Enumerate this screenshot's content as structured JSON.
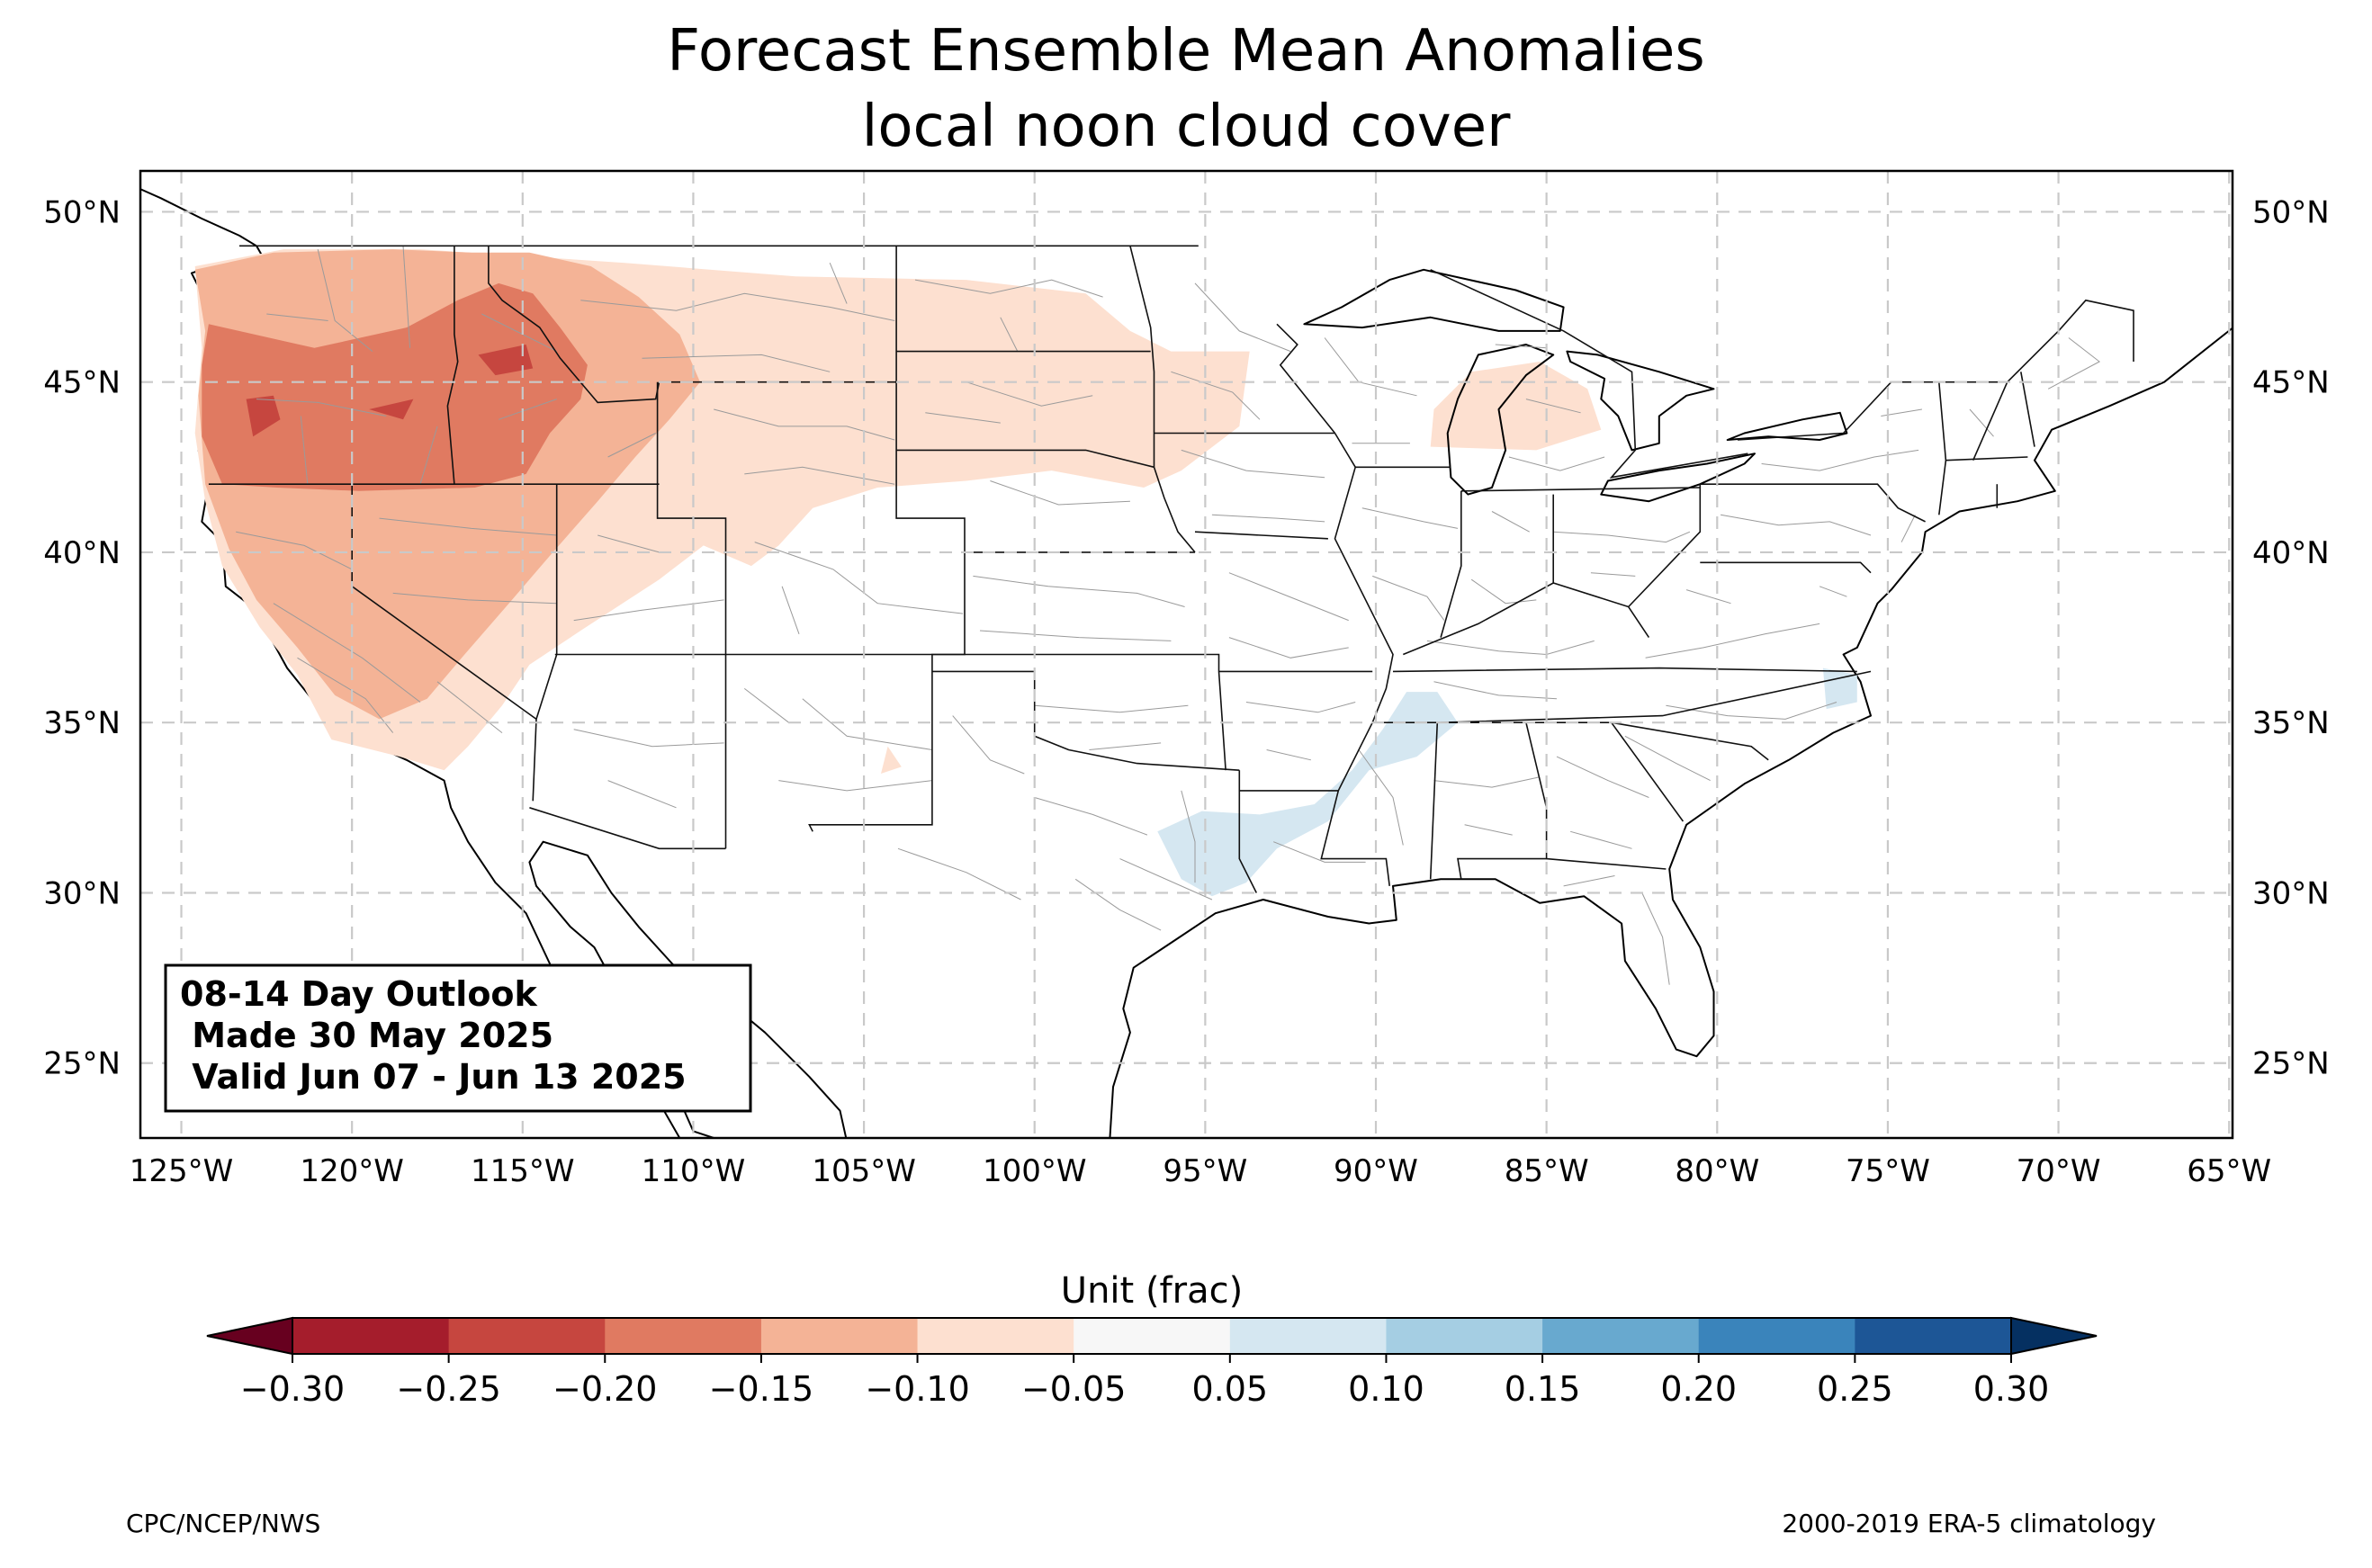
{
  "title": {
    "line1": "Forecast Ensemble Mean Anomalies",
    "line2": "local noon cloud cover"
  },
  "map": {
    "projection": "lat-lon",
    "lon_range": [
      -126.2,
      -64.9
    ],
    "lat_range": [
      22.8,
      51.2
    ],
    "lon_ticks": [
      {
        "value": -125,
        "label": "125°W"
      },
      {
        "value": -120,
        "label": "120°W"
      },
      {
        "value": -115,
        "label": "115°W"
      },
      {
        "value": -110,
        "label": "110°W"
      },
      {
        "value": -105,
        "label": "105°W"
      },
      {
        "value": -100,
        "label": "100°W"
      },
      {
        "value": -95,
        "label": "95°W"
      },
      {
        "value": -90,
        "label": "90°W"
      },
      {
        "value": -85,
        "label": "85°W"
      },
      {
        "value": -80,
        "label": "80°W"
      },
      {
        "value": -75,
        "label": "75°W"
      },
      {
        "value": -70,
        "label": "70°W"
      },
      {
        "value": -65,
        "label": "65°W"
      }
    ],
    "lat_ticks": [
      {
        "value": 50,
        "label": "50°N"
      },
      {
        "value": 45,
        "label": "45°N"
      },
      {
        "value": 40,
        "label": "40°N"
      },
      {
        "value": 35,
        "label": "35°N"
      },
      {
        "value": 30,
        "label": "30°N"
      },
      {
        "value": 25,
        "label": "25°N"
      }
    ],
    "gridlines": true,
    "land_color": "#f5f5f5",
    "ocean_color": "#ffffff"
  },
  "info_box": {
    "line1": "08-14 Day Outlook",
    "line2": " Made 30 May 2025",
    "line3": " Valid Jun 07 - Jun 13 2025"
  },
  "colorbar": {
    "label": "Unit (frac)",
    "ticks": [
      "−0.30",
      "−0.25",
      "−0.20",
      "−0.15",
      "−0.10",
      "−0.05",
      "0.05",
      "0.10",
      "0.15",
      "0.20",
      "0.25",
      "0.30"
    ],
    "under_color": "#67001f",
    "over_color": "#053061",
    "bins": [
      {
        "range": [
          -0.3,
          -0.25
        ],
        "color": "#a51d2c"
      },
      {
        "range": [
          -0.25,
          -0.2
        ],
        "color": "#c6463f"
      },
      {
        "range": [
          -0.2,
          -0.15
        ],
        "color": "#e07a61"
      },
      {
        "range": [
          -0.15,
          -0.1
        ],
        "color": "#f4b396"
      },
      {
        "range": [
          -0.1,
          -0.05
        ],
        "color": "#fde0d0"
      },
      {
        "range": [
          -0.05,
          0.05
        ],
        "color": "#f7f7f7"
      },
      {
        "range": [
          0.05,
          0.1
        ],
        "color": "#d5e7f1"
      },
      {
        "range": [
          0.1,
          0.15
        ],
        "color": "#a5cee3"
      },
      {
        "range": [
          0.15,
          0.2
        ],
        "color": "#68a9cf"
      },
      {
        "range": [
          0.2,
          0.25
        ],
        "color": "#3a84bb"
      },
      {
        "range": [
          0.25,
          0.3
        ],
        "color": "#1d5696"
      }
    ]
  },
  "anomaly_regions": [
    {
      "level": -0.075,
      "color": "#fde0d0",
      "points": [
        [
          -124.6,
          48.4
        ],
        [
          -122,
          48.9
        ],
        [
          -118,
          48.9
        ],
        [
          -112,
          48.5
        ],
        [
          -107,
          48.1
        ],
        [
          -102,
          48.0
        ],
        [
          -98.5,
          47.6
        ],
        [
          -97.2,
          46.5
        ],
        [
          -96,
          45.9
        ],
        [
          -93.7,
          45.9
        ],
        [
          -94,
          43.7
        ],
        [
          -95.7,
          42.4
        ],
        [
          -96.8,
          41.9
        ],
        [
          -99.5,
          42.4
        ],
        [
          -102,
          42.1
        ],
        [
          -104.6,
          41.9
        ],
        [
          -106.5,
          41.3
        ],
        [
          -107.5,
          40.2
        ],
        [
          -108.3,
          39.6
        ],
        [
          -109.7,
          40.2
        ],
        [
          -111,
          39.2
        ],
        [
          -113.3,
          37.7
        ],
        [
          -114.8,
          36.7
        ],
        [
          -115.6,
          35.5
        ],
        [
          -116.6,
          34.3
        ],
        [
          -117.3,
          33.6
        ],
        [
          -118.6,
          34.0
        ],
        [
          -120.6,
          34.5
        ],
        [
          -121.6,
          36.4
        ],
        [
          -122.7,
          37.8
        ],
        [
          -123.8,
          39.6
        ],
        [
          -124.3,
          41.5
        ],
        [
          -124.6,
          43.5
        ],
        [
          -124.4,
          46.0
        ]
      ]
    },
    {
      "level": -0.075,
      "color": "#fde0d0",
      "points": [
        [
          -87.2,
          45.3
        ],
        [
          -85.2,
          45.6
        ],
        [
          -83.8,
          44.8
        ],
        [
          -83.4,
          43.6
        ],
        [
          -85.3,
          43.0
        ],
        [
          -88.4,
          43.1
        ],
        [
          -88.3,
          44.2
        ]
      ]
    },
    {
      "level": -0.075,
      "color": "#fde0d0",
      "points": [
        [
          -104.3,
          34.3
        ],
        [
          -103.9,
          33.7
        ],
        [
          -104.5,
          33.5
        ]
      ]
    },
    {
      "level": -0.125,
      "color": "#f4b396",
      "points": [
        [
          -124.6,
          48.3
        ],
        [
          -122.3,
          48.8
        ],
        [
          -118.8,
          48.9
        ],
        [
          -116.5,
          48.8
        ],
        [
          -114.8,
          48.8
        ],
        [
          -113,
          48.4
        ],
        [
          -111.6,
          47.5
        ],
        [
          -110.4,
          46.4
        ],
        [
          -109.8,
          45.0
        ],
        [
          -110.7,
          43.9
        ],
        [
          -111.7,
          42.8
        ],
        [
          -112.8,
          41.5
        ],
        [
          -114.2,
          39.9
        ],
        [
          -115.4,
          38.5
        ],
        [
          -116.7,
          37.0
        ],
        [
          -117.8,
          35.7
        ],
        [
          -119.2,
          35.1
        ],
        [
          -120.5,
          35.8
        ],
        [
          -121.6,
          37.2
        ],
        [
          -122.8,
          38.6
        ],
        [
          -123.6,
          40.1
        ],
        [
          -124.3,
          42.0
        ],
        [
          -124.5,
          44.6
        ],
        [
          -124.3,
          46.5
        ]
      ]
    },
    {
      "level": -0.175,
      "color": "#e07a61",
      "points": [
        [
          -124.2,
          46.7
        ],
        [
          -121.1,
          46.0
        ],
        [
          -118.4,
          46.6
        ],
        [
          -116.9,
          47.4
        ],
        [
          -115.7,
          47.9
        ],
        [
          -114.7,
          47.6
        ],
        [
          -113.9,
          46.6
        ],
        [
          -113.1,
          45.5
        ],
        [
          -113.3,
          44.5
        ],
        [
          -114.2,
          43.5
        ],
        [
          -114.9,
          42.3
        ],
        [
          -116.4,
          41.9
        ],
        [
          -119.8,
          41.8
        ],
        [
          -122.2,
          41.9
        ],
        [
          -123.8,
          42.0
        ],
        [
          -124.4,
          43.4
        ],
        [
          -124.4,
          45.5
        ]
      ]
    },
    {
      "level": -0.225,
      "color": "#c6463f",
      "points": [
        [
          -123.1,
          44.5
        ],
        [
          -122.3,
          44.6
        ],
        [
          -122.1,
          43.9
        ],
        [
          -122.9,
          43.4
        ]
      ]
    },
    {
      "level": -0.225,
      "color": "#c6463f",
      "points": [
        [
          -116.3,
          45.8
        ],
        [
          -114.9,
          46.1
        ],
        [
          -114.7,
          45.4
        ],
        [
          -115.8,
          45.2
        ]
      ]
    },
    {
      "level": -0.225,
      "color": "#c6463f",
      "points": [
        [
          -119.5,
          44.2
        ],
        [
          -118.2,
          44.5
        ],
        [
          -118.5,
          43.9
        ]
      ]
    },
    {
      "level": 0.075,
      "color": "#d5e7f1",
      "points": [
        [
          -96.4,
          31.8
        ],
        [
          -95.1,
          32.4
        ],
        [
          -93.4,
          32.3
        ],
        [
          -91.8,
          32.6
        ],
        [
          -90.7,
          33.6
        ],
        [
          -89.8,
          34.8
        ],
        [
          -89.1,
          35.9
        ],
        [
          -88.2,
          35.9
        ],
        [
          -87.6,
          35.0
        ],
        [
          -88.8,
          34.0
        ],
        [
          -90.2,
          33.6
        ],
        [
          -91.4,
          32.1
        ],
        [
          -92.9,
          31.3
        ],
        [
          -93.8,
          30.3
        ],
        [
          -94.8,
          29.9
        ],
        [
          -95.7,
          30.4
        ]
      ]
    },
    {
      "level": 0.075,
      "color": "#d5e7f1",
      "points": [
        [
          -76.9,
          36.6
        ],
        [
          -75.9,
          36.4
        ],
        [
          -75.9,
          35.6
        ],
        [
          -76.8,
          35.4
        ]
      ]
    }
  ],
  "credits": {
    "left": "CPC/NCEP/NWS",
    "right": "2000-2019 ERA-5 climatology"
  }
}
